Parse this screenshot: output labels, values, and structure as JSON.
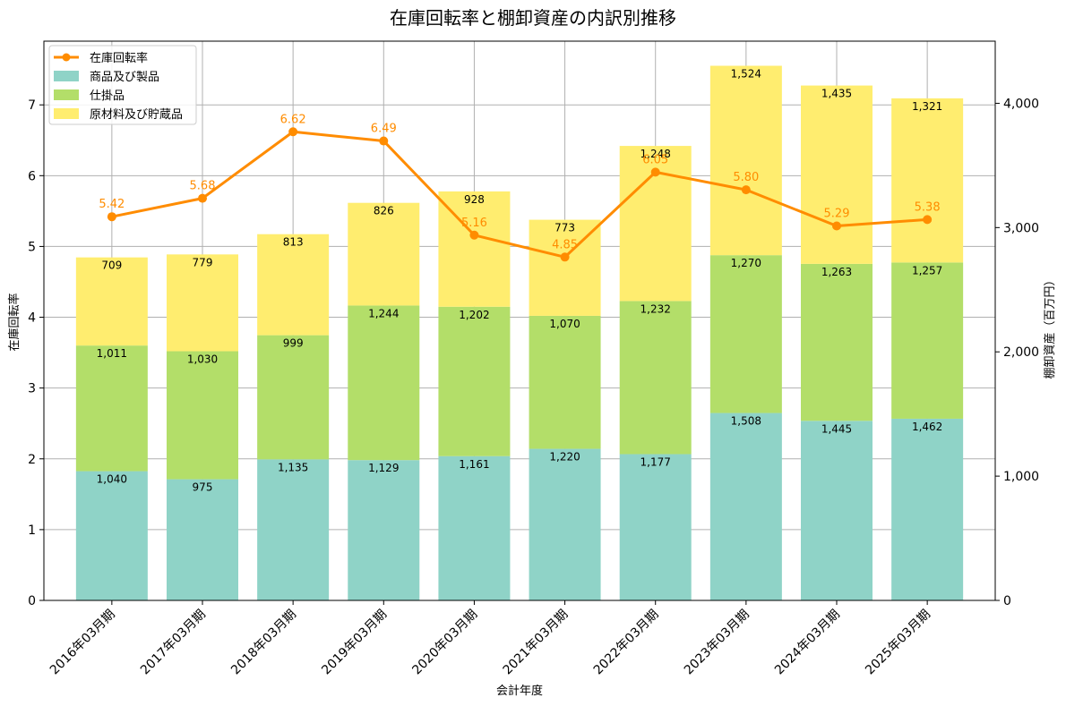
{
  "chart_data": {
    "type": "bar",
    "title": "在庫回転率と棚卸資産の内訳別推移",
    "xlabel": "会計年度",
    "ylabel_left": "在庫回転率",
    "ylabel_right": "棚卸資産（百万円）",
    "categories": [
      "2016年03月期",
      "2017年03月期",
      "2018年03月期",
      "2019年03月期",
      "2020年03月期",
      "2021年03月期",
      "2022年03月期",
      "2023年03月期",
      "2024年03月期",
      "2025年03月期"
    ],
    "ylim_left": [
      0,
      7.9
    ],
    "ylim_right": [
      0,
      4500
    ],
    "yticks_left": [
      0,
      1,
      2,
      3,
      4,
      5,
      6,
      7
    ],
    "yticks_right": [
      0,
      1000,
      2000,
      3000,
      4000
    ],
    "yticks_right_labels": [
      "0",
      "1,000",
      "2,000",
      "3,000",
      "4,000"
    ],
    "grid": true,
    "legend_position": "top-left",
    "series": [
      {
        "name": "商品及び製品",
        "kind": "bar",
        "axis": "right",
        "color": "#8fd3c7",
        "values": [
          1040,
          975,
          1135,
          1129,
          1161,
          1220,
          1177,
          1508,
          1445,
          1462
        ],
        "labels": [
          "1,040",
          "975",
          "1,135",
          "1,129",
          "1,161",
          "1,220",
          "1,177",
          "1,508",
          "1,445",
          "1,462"
        ]
      },
      {
        "name": "仕掛品",
        "kind": "bar",
        "axis": "right",
        "color": "#b3de69",
        "values": [
          1011,
          1030,
          999,
          1244,
          1202,
          1070,
          1232,
          1270,
          1263,
          1257
        ],
        "labels": [
          "1,011",
          "1,030",
          "999",
          "1,244",
          "1,202",
          "1,070",
          "1,232",
          "1,270",
          "1,263",
          "1,257"
        ]
      },
      {
        "name": "原材料及び貯蔵品",
        "kind": "bar",
        "axis": "right",
        "color": "#ffed6f",
        "values": [
          709,
          779,
          813,
          826,
          928,
          773,
          1248,
          1524,
          1435,
          1321
        ],
        "labels": [
          "709",
          "779",
          "813",
          "826",
          "928",
          "773",
          "1,248",
          "1,524",
          "1,435",
          "1,321"
        ]
      },
      {
        "name": "在庫回転率",
        "kind": "line",
        "axis": "left",
        "color": "#ff8c00",
        "values": [
          5.42,
          5.68,
          6.62,
          6.49,
          5.16,
          4.85,
          6.05,
          5.8,
          5.29,
          5.38
        ],
        "labels": [
          "5.42",
          "5.68",
          "6.62",
          "6.49",
          "5.16",
          "4.85",
          "6.05",
          "5.80",
          "5.29",
          "5.38"
        ]
      }
    ]
  }
}
